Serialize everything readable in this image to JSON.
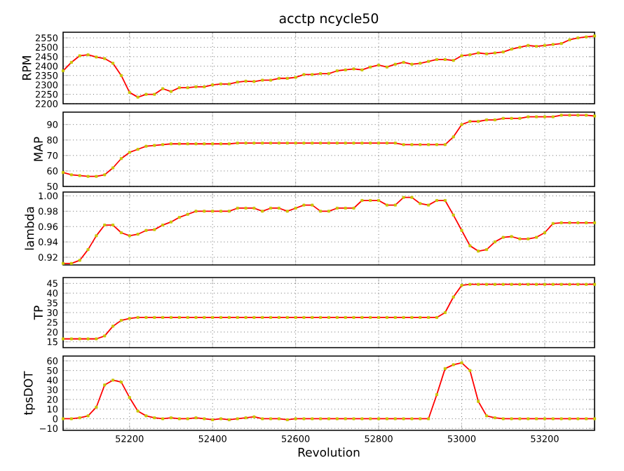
{
  "chart_data": [
    {
      "type": "line",
      "title": "acctp ncycle50",
      "ylabel": "RPM",
      "x": [
        52040,
        52060,
        52080,
        52100,
        52120,
        52140,
        52160,
        52180,
        52200,
        52220,
        52240,
        52260,
        52280,
        52300,
        52320,
        52340,
        52360,
        52380,
        52400,
        52420,
        52440,
        52460,
        52480,
        52500,
        52520,
        52540,
        52560,
        52580,
        52600,
        52620,
        52640,
        52660,
        52680,
        52700,
        52720,
        52740,
        52760,
        52780,
        52800,
        52820,
        52840,
        52860,
        52880,
        52900,
        52920,
        52940,
        52960,
        52980,
        53000,
        53020,
        53040,
        53060,
        53080,
        53100,
        53120,
        53140,
        53160,
        53180,
        53200,
        53220,
        53240,
        53260,
        53280,
        53300,
        53320
      ],
      "xlim": [
        52040,
        53320
      ],
      "xticks": [
        52200,
        52400,
        52600,
        52800,
        53000,
        53200
      ],
      "ylim": [
        2200,
        2580
      ],
      "yticks": [
        2200,
        2250,
        2300,
        2350,
        2400,
        2450,
        2500,
        2550
      ],
      "grid": true,
      "tick_labels": "y",
      "series": [
        {
          "color": "#ff0000",
          "marker": "none",
          "values": [
            2375,
            2420,
            2455,
            2460,
            2448,
            2440,
            2415,
            2350,
            2260,
            2235,
            2250,
            2250,
            2280,
            2265,
            2285,
            2285,
            2290,
            2290,
            2300,
            2305,
            2305,
            2315,
            2320,
            2318,
            2325,
            2325,
            2335,
            2335,
            2340,
            2355,
            2355,
            2360,
            2360,
            2375,
            2380,
            2385,
            2380,
            2395,
            2405,
            2395,
            2410,
            2420,
            2410,
            2415,
            2425,
            2435,
            2435,
            2430,
            2455,
            2460,
            2470,
            2465,
            2470,
            2475,
            2490,
            2500,
            2510,
            2505,
            2510,
            2515,
            2520,
            2540,
            2550,
            2555,
            2560
          ]
        },
        {
          "type": "scatter",
          "color": "#c8c800",
          "marker": "square",
          "values": [
            2375,
            2420,
            2455,
            2460,
            2448,
            2440,
            2415,
            2350,
            2260,
            2235,
            2250,
            2250,
            2280,
            2265,
            2285,
            2285,
            2290,
            2290,
            2300,
            2305,
            2305,
            2315,
            2320,
            2318,
            2325,
            2325,
            2335,
            2335,
            2340,
            2355,
            2355,
            2360,
            2360,
            2375,
            2380,
            2385,
            2380,
            2395,
            2405,
            2395,
            2410,
            2420,
            2410,
            2415,
            2425,
            2435,
            2435,
            2430,
            2455,
            2460,
            2470,
            2465,
            2470,
            2475,
            2490,
            2500,
            2510,
            2505,
            2510,
            2515,
            2520,
            2540,
            2550,
            2555,
            2560
          ]
        }
      ]
    },
    {
      "type": "line",
      "ylabel": "MAP",
      "x": [
        52040,
        52060,
        52080,
        52100,
        52120,
        52140,
        52160,
        52180,
        52200,
        52220,
        52240,
        52260,
        52280,
        52300,
        52320,
        52340,
        52360,
        52380,
        52400,
        52420,
        52440,
        52460,
        52480,
        52500,
        52520,
        52540,
        52560,
        52580,
        52600,
        52620,
        52640,
        52660,
        52680,
        52700,
        52720,
        52740,
        52760,
        52780,
        52800,
        52820,
        52840,
        52860,
        52880,
        52900,
        52920,
        52940,
        52960,
        52980,
        53000,
        53020,
        53040,
        53060,
        53080,
        53100,
        53120,
        53140,
        53160,
        53180,
        53200,
        53220,
        53240,
        53260,
        53280,
        53300,
        53320
      ],
      "xlim": [
        52040,
        53320
      ],
      "xticks": [
        52200,
        52400,
        52600,
        52800,
        53000,
        53200
      ],
      "ylim": [
        50,
        98
      ],
      "yticks": [
        50,
        60,
        70,
        80,
        90
      ],
      "grid": true,
      "tick_labels": "y",
      "series": [
        {
          "color": "#ff0000",
          "marker": "none",
          "values": [
            59,
            57.5,
            57,
            56.5,
            56.5,
            57.5,
            62,
            68,
            72,
            74,
            76,
            76.5,
            77,
            77.5,
            77.5,
            77.5,
            77.5,
            77.5,
            77.5,
            77.5,
            77.5,
            78,
            78,
            78,
            78,
            78,
            78,
            78,
            78,
            78,
            78,
            78,
            78,
            78,
            78,
            78,
            78,
            78,
            78,
            78,
            78,
            77,
            77,
            77,
            77,
            77,
            77,
            82,
            90,
            92,
            92,
            93,
            93,
            94,
            94,
            94,
            95,
            95,
            95,
            95,
            96,
            96,
            96,
            96,
            95.5
          ]
        },
        {
          "type": "scatter",
          "color": "#c8c800",
          "marker": "square",
          "values": [
            59,
            57.5,
            57,
            56.5,
            56.5,
            57.5,
            62,
            68,
            72,
            74,
            76,
            76.5,
            77,
            77.5,
            77.5,
            77.5,
            77.5,
            77.5,
            77.5,
            77.5,
            77.5,
            78,
            78,
            78,
            78,
            78,
            78,
            78,
            78,
            78,
            78,
            78,
            78,
            78,
            78,
            78,
            78,
            78,
            78,
            78,
            78,
            77,
            77,
            77,
            77,
            77,
            77,
            82,
            90,
            92,
            92,
            93,
            93,
            94,
            94,
            94,
            95,
            95,
            95,
            95,
            96,
            96,
            96,
            96,
            95.5
          ]
        }
      ]
    },
    {
      "type": "line",
      "ylabel": "lambda",
      "x": [
        52040,
        52060,
        52080,
        52100,
        52120,
        52140,
        52160,
        52180,
        52200,
        52220,
        52240,
        52260,
        52280,
        52300,
        52320,
        52340,
        52360,
        52380,
        52400,
        52420,
        52440,
        52460,
        52480,
        52500,
        52520,
        52540,
        52560,
        52580,
        52600,
        52620,
        52640,
        52660,
        52680,
        52700,
        52720,
        52740,
        52760,
        52780,
        52800,
        52820,
        52840,
        52860,
        52880,
        52900,
        52920,
        52940,
        52960,
        52980,
        53000,
        53020,
        53040,
        53060,
        53080,
        53100,
        53120,
        53140,
        53160,
        53180,
        53200,
        53220,
        53240,
        53260,
        53280,
        53300,
        53320
      ],
      "xlim": [
        52040,
        53320
      ],
      "xticks": [
        52200,
        52400,
        52600,
        52800,
        53000,
        53200
      ],
      "ylim": [
        0.91,
        1.005
      ],
      "yticks": [
        0.92,
        0.94,
        0.96,
        0.98,
        {
          "value": 1.0,
          "label": "1.00"
        }
      ],
      "grid": true,
      "tick_labels": "y",
      "series": [
        {
          "color": "#ff0000",
          "marker": "none",
          "values": [
            0.912,
            0.912,
            0.916,
            0.93,
            0.948,
            0.962,
            0.962,
            0.952,
            0.948,
            0.95,
            0.955,
            0.956,
            0.962,
            0.966,
            0.972,
            0.976,
            0.98,
            0.98,
            0.98,
            0.98,
            0.98,
            0.984,
            0.984,
            0.984,
            0.98,
            0.984,
            0.984,
            0.98,
            0.984,
            0.988,
            0.988,
            0.98,
            0.98,
            0.984,
            0.984,
            0.984,
            0.994,
            0.994,
            0.994,
            0.988,
            0.988,
            0.998,
            0.998,
            0.99,
            0.988,
            0.994,
            0.994,
            0.975,
            0.955,
            0.935,
            0.928,
            0.93,
            0.94,
            0.946,
            0.947,
            0.944,
            0.944,
            0.946,
            0.952,
            0.964,
            0.965,
            0.965,
            0.965,
            0.965,
            0.965
          ]
        },
        {
          "type": "scatter",
          "color": "#c8c800",
          "marker": "square",
          "values": [
            0.912,
            0.912,
            0.916,
            0.93,
            0.948,
            0.962,
            0.962,
            0.952,
            0.948,
            0.95,
            0.955,
            0.956,
            0.962,
            0.966,
            0.972,
            0.976,
            0.98,
            0.98,
            0.98,
            0.98,
            0.98,
            0.984,
            0.984,
            0.984,
            0.98,
            0.984,
            0.984,
            0.98,
            0.984,
            0.988,
            0.988,
            0.98,
            0.98,
            0.984,
            0.984,
            0.984,
            0.994,
            0.994,
            0.994,
            0.988,
            0.988,
            0.998,
            0.998,
            0.99,
            0.988,
            0.994,
            0.994,
            0.975,
            0.955,
            0.935,
            0.928,
            0.93,
            0.94,
            0.946,
            0.947,
            0.944,
            0.944,
            0.946,
            0.952,
            0.964,
            0.965,
            0.965,
            0.965,
            0.965,
            0.965
          ]
        }
      ]
    },
    {
      "type": "line",
      "ylabel": "TP",
      "x": [
        52040,
        52060,
        52080,
        52100,
        52120,
        52140,
        52160,
        52180,
        52200,
        52220,
        52240,
        52260,
        52280,
        52300,
        52320,
        52340,
        52360,
        52380,
        52400,
        52420,
        52440,
        52460,
        52480,
        52500,
        52520,
        52540,
        52560,
        52580,
        52600,
        52620,
        52640,
        52660,
        52680,
        52700,
        52720,
        52740,
        52760,
        52780,
        52800,
        52820,
        52840,
        52860,
        52880,
        52900,
        52920,
        52940,
        52960,
        52980,
        53000,
        53020,
        53040,
        53060,
        53080,
        53100,
        53120,
        53140,
        53160,
        53180,
        53200,
        53220,
        53240,
        53260,
        53280,
        53300,
        53320
      ],
      "xlim": [
        52040,
        53320
      ],
      "xticks": [
        52200,
        52400,
        52600,
        52800,
        53000,
        53200
      ],
      "ylim": [
        12,
        48
      ],
      "yticks": [
        15,
        20,
        25,
        30,
        35,
        40,
        45
      ],
      "grid": true,
      "tick_labels": "y",
      "series": [
        {
          "color": "#ff0000",
          "marker": "none",
          "values": [
            16.5,
            16.5,
            16.5,
            16.5,
            16.5,
            18,
            23,
            26,
            27,
            27.5,
            27.5,
            27.5,
            27.5,
            27.5,
            27.5,
            27.5,
            27.5,
            27.5,
            27.5,
            27.5,
            27.5,
            27.5,
            27.5,
            27.5,
            27.5,
            27.5,
            27.5,
            27.5,
            27.5,
            27.5,
            27.5,
            27.5,
            27.5,
            27.5,
            27.5,
            27.5,
            27.5,
            27.5,
            27.5,
            27.5,
            27.5,
            27.5,
            27.5,
            27.5,
            27.5,
            27.5,
            30,
            38,
            44,
            44.5,
            44.5,
            44.5,
            44.5,
            44.5,
            44.5,
            44.5,
            44.5,
            44.5,
            44.5,
            44.5,
            44.5,
            44.5,
            44.5,
            44.5,
            44.5
          ]
        },
        {
          "type": "scatter",
          "color": "#c8c800",
          "marker": "square",
          "values": [
            16.5,
            16.5,
            16.5,
            16.5,
            16.5,
            18,
            23,
            26,
            27,
            27.5,
            27.5,
            27.5,
            27.5,
            27.5,
            27.5,
            27.5,
            27.5,
            27.5,
            27.5,
            27.5,
            27.5,
            27.5,
            27.5,
            27.5,
            27.5,
            27.5,
            27.5,
            27.5,
            27.5,
            27.5,
            27.5,
            27.5,
            27.5,
            27.5,
            27.5,
            27.5,
            27.5,
            27.5,
            27.5,
            27.5,
            27.5,
            27.5,
            27.5,
            27.5,
            27.5,
            27.5,
            30,
            38,
            44,
            44.5,
            44.5,
            44.5,
            44.5,
            44.5,
            44.5,
            44.5,
            44.5,
            44.5,
            44.5,
            44.5,
            44.5,
            44.5,
            44.5,
            44.5,
            44.5
          ]
        }
      ]
    },
    {
      "type": "line",
      "ylabel": "tpsDOT",
      "xlabel": "Revolution",
      "x": [
        52040,
        52060,
        52080,
        52100,
        52120,
        52140,
        52160,
        52180,
        52200,
        52220,
        52240,
        52260,
        52280,
        52300,
        52320,
        52340,
        52360,
        52380,
        52400,
        52420,
        52440,
        52460,
        52480,
        52500,
        52520,
        52540,
        52560,
        52580,
        52600,
        52620,
        52640,
        52660,
        52680,
        52700,
        52720,
        52740,
        52760,
        52780,
        52800,
        52820,
        52840,
        52860,
        52880,
        52900,
        52920,
        52940,
        52960,
        52980,
        53000,
        53020,
        53040,
        53060,
        53080,
        53100,
        53120,
        53140,
        53160,
        53180,
        53200,
        53220,
        53240,
        53260,
        53280,
        53300,
        53320
      ],
      "xlim": [
        52040,
        53320
      ],
      "xticks": [
        52200,
        52400,
        52600,
        52800,
        53000,
        53200
      ],
      "ylim": [
        -12,
        65
      ],
      "yticks": [
        {
          "value": -10,
          "label": "−10"
        },
        0,
        10,
        20,
        30,
        40,
        50,
        60
      ],
      "grid": true,
      "series": [
        {
          "color": "#ff0000",
          "marker": "none",
          "values": [
            0,
            0,
            1,
            3,
            12,
            35,
            40,
            38,
            22,
            8,
            3,
            1,
            0,
            1,
            0,
            0,
            1,
            0,
            -1,
            0,
            -1,
            0,
            1,
            2,
            0,
            0,
            0,
            -1,
            0,
            0,
            0,
            0,
            0,
            0,
            0,
            0,
            0,
            0,
            0,
            0,
            0,
            0,
            0,
            0,
            0,
            25,
            52,
            56,
            58,
            50,
            18,
            3,
            1,
            0,
            0,
            0,
            0,
            0,
            0,
            0,
            0,
            0,
            0,
            0,
            0
          ]
        },
        {
          "type": "scatter",
          "color": "#c8c800",
          "marker": "square",
          "values": [
            0,
            0,
            1,
            3,
            12,
            35,
            40,
            38,
            22,
            8,
            3,
            1,
            0,
            1,
            0,
            0,
            1,
            0,
            -1,
            0,
            -1,
            0,
            1,
            2,
            0,
            0,
            0,
            -1,
            0,
            0,
            0,
            0,
            0,
            0,
            0,
            0,
            0,
            0,
            0,
            0,
            0,
            0,
            0,
            0,
            0,
            25,
            52,
            56,
            58,
            50,
            18,
            3,
            1,
            0,
            0,
            0,
            0,
            0,
            0,
            0,
            0,
            0,
            0,
            0,
            0
          ]
        }
      ]
    }
  ]
}
